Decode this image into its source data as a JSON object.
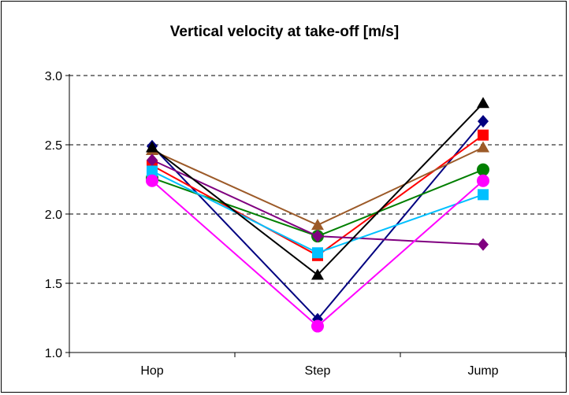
{
  "chart_data": {
    "type": "line",
    "title": "Vertical velocity at take-off [m/s]",
    "xlabel": "",
    "ylabel": "",
    "categories": [
      "Hop",
      "Step",
      "Jump"
    ],
    "ylim": [
      1.0,
      3.0
    ],
    "yticks": [
      "1.0",
      "1.5",
      "2.0",
      "2.5",
      "3.0"
    ],
    "grid": "horizontal-dashed",
    "legend": "none",
    "series": [
      {
        "color": "#000080",
        "marker": "diamond",
        "values": [
          2.49,
          1.24,
          2.67
        ]
      },
      {
        "color": "#ff0000",
        "marker": "square",
        "values": [
          2.35,
          1.7,
          2.57
        ]
      },
      {
        "color": "#9c5a28",
        "marker": "triangle",
        "values": [
          2.46,
          1.92,
          2.48
        ]
      },
      {
        "color": "#007f00",
        "marker": "circle",
        "values": [
          2.26,
          1.84,
          2.32
        ]
      },
      {
        "color": "#800080",
        "marker": "diamond",
        "values": [
          2.39,
          1.84,
          1.78
        ]
      },
      {
        "color": "#00c0ff",
        "marker": "square",
        "values": [
          2.31,
          1.72,
          2.14
        ]
      },
      {
        "color": "#000000",
        "marker": "triangle",
        "values": [
          2.48,
          1.56,
          2.8
        ]
      },
      {
        "color": "#ff00ff",
        "marker": "circle",
        "values": [
          2.24,
          1.19,
          2.24
        ]
      }
    ]
  }
}
